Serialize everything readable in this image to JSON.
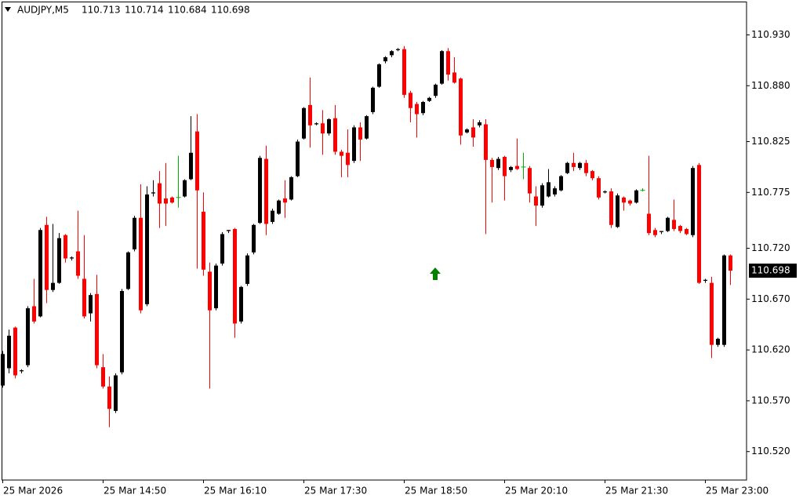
{
  "chart_data": {
    "type": "candlestick",
    "symbol": "AUDJPY,M5",
    "categories": [
      "25 Mar 2026",
      null,
      null,
      null,
      null,
      null,
      null,
      null,
      null,
      null,
      null,
      null,
      null,
      null,
      null,
      null,
      "25 Mar 14:50",
      null,
      null,
      null,
      null,
      null,
      null,
      null,
      null,
      null,
      null,
      null,
      null,
      null,
      null,
      null,
      "25 Mar 16:10",
      null,
      null,
      null,
      null,
      null,
      null,
      null,
      null,
      null,
      null,
      null,
      null,
      null,
      null,
      null,
      "25 Mar 17:30",
      null,
      null,
      null,
      null,
      null,
      null,
      null,
      null,
      null,
      null,
      null,
      null,
      null,
      null,
      null,
      "25 Mar 18:50",
      null,
      null,
      null,
      null,
      null,
      null,
      null,
      null,
      null,
      null,
      null,
      null,
      null,
      null,
      null,
      "25 Mar 20:10",
      null,
      null,
      null,
      null,
      null,
      null,
      null,
      null,
      null,
      null,
      null,
      null,
      null,
      null,
      null,
      "25 Mar 21:30",
      null,
      null,
      null,
      null,
      null,
      null,
      null,
      null,
      null,
      null,
      null,
      null,
      null,
      null,
      null,
      "25 Mar 23:00",
      null,
      null,
      null,
      null
    ],
    "open": [
      110.585,
      110.602,
      110.642,
      110.599,
      110.605,
      110.663,
      110.653,
      110.743,
      110.679,
      110.686,
      110.733,
      110.71,
      110.717,
      110.69,
      110.656,
      110.675,
      110.603,
      110.584,
      110.56,
      110.598,
      110.68,
      110.719,
      110.75,
      110.665,
      110.774,
      110.784,
      110.769,
      110.77,
      110.77,
      110.771,
      110.788,
      110.835,
      110.756,
      110.697,
      110.661,
      110.705,
      110.737,
      110.739,
      110.648,
      110.685,
      110.716,
      110.745,
      110.808,
      110.746,
      110.754,
      110.769,
      110.768,
      110.791,
      110.828,
      110.861,
      110.842,
      110.843,
      110.833,
      110.848,
      110.815,
      110.814,
      110.806,
      110.839,
      110.828,
      110.854,
      110.879,
      110.904,
      110.91,
      110.915,
      110.916,
      110.873,
      110.862,
      110.853,
      110.865,
      110.87,
      110.882,
      110.914,
      110.893,
      110.887,
      110.834,
      110.839,
      110.841,
      110.842,
      110.807,
      110.799,
      110.81,
      110.797,
      110.801,
      110.8,
      110.799,
      110.771,
      110.762,
      110.771,
      110.773,
      110.777,
      110.794,
      110.804,
      110.799,
      110.804,
      110.796,
      110.789,
      110.775,
      110.776,
      110.741,
      110.77,
      110.767,
      110.765,
      110.777,
      110.754,
      110.738,
      110.736,
      110.737,
      110.748,
      110.742,
      110.739,
      110.733,
      110.802,
      110.688,
      110.686,
      110.625,
      110.625,
      110.713
    ],
    "high": [
      110.619,
      110.64,
      110.643,
      110.601,
      110.663,
      110.69,
      110.74,
      110.751,
      110.744,
      110.735,
      110.734,
      110.712,
      110.757,
      110.733,
      110.676,
      110.694,
      110.616,
      110.594,
      110.597,
      110.68,
      110.717,
      110.752,
      110.783,
      110.781,
      110.787,
      110.796,
      110.804,
      110.771,
      110.811,
      110.788,
      110.85,
      110.852,
      110.775,
      110.706,
      110.705,
      110.736,
      110.738,
      110.74,
      110.683,
      110.715,
      110.744,
      110.811,
      110.821,
      110.759,
      110.768,
      110.787,
      110.791,
      110.827,
      110.859,
      110.888,
      110.844,
      110.856,
      110.848,
      110.861,
      110.817,
      110.837,
      110.841,
      110.844,
      110.851,
      110.879,
      110.902,
      110.909,
      110.915,
      110.917,
      110.919,
      110.875,
      110.864,
      110.865,
      110.869,
      110.882,
      110.915,
      110.917,
      110.908,
      110.888,
      110.838,
      110.847,
      110.846,
      110.847,
      110.809,
      110.81,
      110.811,
      110.801,
      110.828,
      110.814,
      110.801,
      110.781,
      110.784,
      110.798,
      110.781,
      110.792,
      110.805,
      110.814,
      110.805,
      110.807,
      110.797,
      110.791,
      110.777,
      110.779,
      110.774,
      110.771,
      110.768,
      110.778,
      110.779,
      110.811,
      110.74,
      110.737,
      110.751,
      110.768,
      110.743,
      110.74,
      110.801,
      110.804,
      110.69,
      110.692,
      110.632,
      110.714,
      110.714
    ],
    "low": [
      110.583,
      110.597,
      110.592,
      110.597,
      110.603,
      110.646,
      110.652,
      110.666,
      110.677,
      110.685,
      110.706,
      110.708,
      110.69,
      110.651,
      110.648,
      110.602,
      110.582,
      110.544,
      110.558,
      110.596,
      110.679,
      110.717,
      110.656,
      110.663,
      110.771,
      110.74,
      110.742,
      110.764,
      110.76,
      110.77,
      110.787,
      110.7,
      110.693,
      110.582,
      110.659,
      110.703,
      110.735,
      110.632,
      110.646,
      110.683,
      110.714,
      110.744,
      110.733,
      110.744,
      110.753,
      110.75,
      110.767,
      110.79,
      110.827,
      110.819,
      110.841,
      110.812,
      110.831,
      110.812,
      110.79,
      110.79,
      110.804,
      110.806,
      110.827,
      110.852,
      110.878,
      110.902,
      110.908,
      110.914,
      110.868,
      110.844,
      110.829,
      110.851,
      110.864,
      110.868,
      110.881,
      110.885,
      110.882,
      110.822,
      110.833,
      110.82,
      110.839,
      110.734,
      110.765,
      110.797,
      110.767,
      110.795,
      110.797,
      110.788,
      110.765,
      110.742,
      110.76,
      110.77,
      110.771,
      110.776,
      110.793,
      110.796,
      110.797,
      110.791,
      110.787,
      110.768,
      110.774,
      110.74,
      110.74,
      110.757,
      110.762,
      110.764,
      110.776,
      110.733,
      110.731,
      110.734,
      110.736,
      110.737,
      110.735,
      110.733,
      110.731,
      110.685,
      110.686,
      110.612,
      110.623,
      110.623,
      110.684
    ],
    "close": [
      110.616,
      110.634,
      110.595,
      110.6,
      110.661,
      110.648,
      110.738,
      110.679,
      110.686,
      110.73,
      110.71,
      110.711,
      110.693,
      110.653,
      110.674,
      110.605,
      110.584,
      110.562,
      110.595,
      110.678,
      110.716,
      110.75,
      110.659,
      110.773,
      110.775,
      110.764,
      110.764,
      110.765,
      110.77,
      110.787,
      110.814,
      110.777,
      110.699,
      110.659,
      110.703,
      110.734,
      110.738,
      110.646,
      110.682,
      110.713,
      110.743,
      110.809,
      110.744,
      110.757,
      110.767,
      110.765,
      110.79,
      110.825,
      110.858,
      110.841,
      110.843,
      110.833,
      110.847,
      110.815,
      110.811,
      110.802,
      110.839,
      110.827,
      110.85,
      110.878,
      110.901,
      110.908,
      110.914,
      110.916,
      110.871,
      110.858,
      110.852,
      110.864,
      110.868,
      110.881,
      110.914,
      110.891,
      110.883,
      110.831,
      110.837,
      110.829,
      110.844,
      110.807,
      110.8,
      110.808,
      110.791,
      110.8,
      110.798,
      110.8,
      110.774,
      110.762,
      110.782,
      110.785,
      110.779,
      110.791,
      110.804,
      110.8,
      110.804,
      110.794,
      110.789,
      110.77,
      110.776,
      110.743,
      110.772,
      110.765,
      110.764,
      110.777,
      110.777,
      110.735,
      110.733,
      110.737,
      110.75,
      110.739,
      110.737,
      110.734,
      110.799,
      110.686,
      110.689,
      110.625,
      110.631,
      110.713,
      110.698
    ],
    "ylim": [
      110.492,
      110.962
    ],
    "yticks": [
      {
        "value": 110.93,
        "label": "110.930"
      },
      {
        "value": 110.88,
        "label": "110.880"
      },
      {
        "value": 110.825,
        "label": "110.825"
      },
      {
        "value": 110.775,
        "label": "110.775"
      },
      {
        "value": 110.72,
        "label": "110.720"
      },
      {
        "value": 110.67,
        "label": "110.670"
      },
      {
        "value": 110.62,
        "label": "110.620"
      },
      {
        "value": 110.57,
        "label": "110.570"
      },
      {
        "value": 110.52,
        "label": "110.520"
      }
    ],
    "up_color": "#000000",
    "down_color": "#ff0000",
    "flat_color": "#00b000"
  }
}
